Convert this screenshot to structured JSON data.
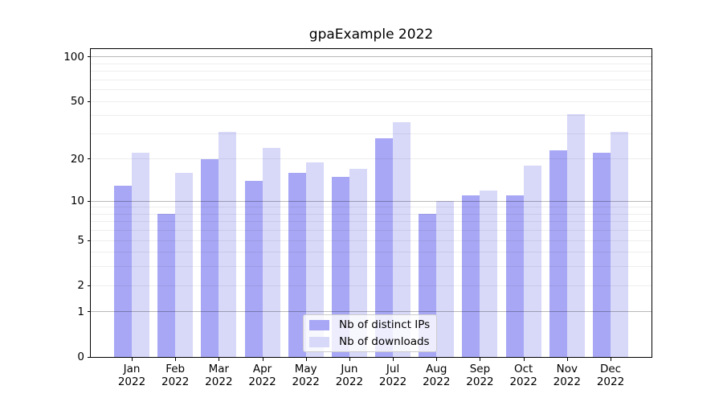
{
  "chart_data": {
    "type": "bar",
    "title": "gpaExample 2022",
    "categories": [
      "Jan",
      "Feb",
      "Mar",
      "Apr",
      "May",
      "Jun",
      "Jul",
      "Aug",
      "Sep",
      "Oct",
      "Nov",
      "Dec"
    ],
    "x_tick_year": "2022",
    "series": [
      {
        "name": "Nb of distinct IPs",
        "color": "#a7a7f5",
        "values": [
          13,
          8,
          20,
          14,
          16,
          15,
          28,
          8,
          11,
          11,
          23,
          22
        ]
      },
      {
        "name": "Nb of downloads",
        "color": "#d8d8f9",
        "values": [
          22,
          16,
          31,
          24,
          19,
          17,
          36,
          10,
          12,
          18,
          41,
          31
        ]
      }
    ],
    "xlabel": "",
    "ylabel": "",
    "y_scale": "log10(1+v)",
    "ylim": [
      0,
      113
    ],
    "y_ticks": [
      0,
      1,
      2,
      5,
      10,
      20,
      50,
      100
    ],
    "y_gridlines_minor": [
      2,
      3,
      4,
      5,
      6,
      7,
      8,
      9,
      20,
      30,
      40,
      50,
      60,
      70,
      80,
      90
    ],
    "y_gridlines_decade": [
      1,
      10,
      100
    ],
    "grid": true,
    "legend_position": "lower-center"
  },
  "colors": {
    "background": "#ffffff",
    "bar_distinct_ips": "#a7a7f5",
    "bar_downloads": "#d8d8f9",
    "spine": "#000000",
    "gridline_minor": "#eeeeee",
    "gridline_decade": "#b8b8b8",
    "legend_border": "#cccccc",
    "text": "#000000"
  }
}
